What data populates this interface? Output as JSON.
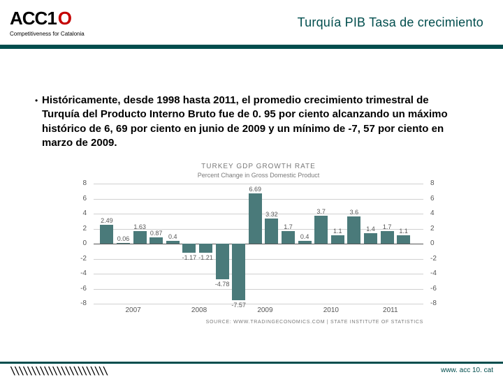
{
  "header": {
    "logo_main": "ACC1",
    "logo_accent": "O",
    "tagline": "Competitiveness for Catalonia",
    "page_title": "Turquía PIB Tasa de crecimiento"
  },
  "bullet": {
    "marker": "•",
    "text": "Históricamente, desde 1998 hasta 2011, el promedio crecimiento trimestral de Turquía  del Producto Interno Bruto fue de 0. 95 por ciento alcanzando un máximo histórico de 6, 69 por ciento en junio de 2009 y un mínimo de -7, 57 por ciento en marzo de 2009."
  },
  "chart": {
    "title": "TURKEY GDP GROWTH RATE",
    "subtitle": "Percent Change in Gross Domestic Product",
    "ylim": [
      -8,
      8
    ],
    "yticks": [
      8,
      6,
      4,
      2,
      0,
      -2,
      -4,
      -6,
      -8
    ],
    "bar_color": "#4a7a7a",
    "grid_color": "#d0d0d0",
    "zero_color": "#555555",
    "bar_width_pct": 4.0,
    "label_fontsize": 9,
    "tick_fontsize": 10,
    "years": [
      {
        "label": "2007",
        "center_pct": 12
      },
      {
        "label": "2008",
        "center_pct": 32
      },
      {
        "label": "2009",
        "center_pct": 52
      },
      {
        "label": "2010",
        "center_pct": 72
      },
      {
        "label": "2011",
        "center_pct": 90
      }
    ],
    "bars": [
      {
        "x_pct": 4,
        "value": 2.49,
        "label": "2.49"
      },
      {
        "x_pct": 9,
        "value": 0.06,
        "label": "0.06"
      },
      {
        "x_pct": 14,
        "value": 1.63,
        "label": "1.63"
      },
      {
        "x_pct": 19,
        "value": 0.87,
        "label": "0.87"
      },
      {
        "x_pct": 24,
        "value": 0.4,
        "label": "0.4"
      },
      {
        "x_pct": 29,
        "value": -1.17,
        "label": "-1.17"
      },
      {
        "x_pct": 34,
        "value": -1.21,
        "label": "-1.21"
      },
      {
        "x_pct": 39,
        "value": -4.78,
        "label": "-4.78"
      },
      {
        "x_pct": 44,
        "value": -7.57,
        "label": "-7.57"
      },
      {
        "x_pct": 49,
        "value": 6.69,
        "label": "6.69"
      },
      {
        "x_pct": 54,
        "value": 3.32,
        "label": "3.32"
      },
      {
        "x_pct": 59,
        "value": 1.7,
        "label": "1.7"
      },
      {
        "x_pct": 64,
        "value": 0.4,
        "label": "0.4"
      },
      {
        "x_pct": 69,
        "value": 3.7,
        "label": "3.7"
      },
      {
        "x_pct": 74,
        "value": 1.1,
        "label": "1.1"
      },
      {
        "x_pct": 79,
        "value": 3.6,
        "label": "3.6"
      },
      {
        "x_pct": 84,
        "value": 1.4,
        "label": "1.4"
      },
      {
        "x_pct": 89,
        "value": 1.7,
        "label": "1.7"
      },
      {
        "x_pct": 94,
        "value": 1.1,
        "label": "1.1"
      }
    ],
    "source": "SOURCE: WWW.TRADINGECONOMICS.COM  |  STATE INSTITUTE OF STATISTICS"
  },
  "footer": {
    "hatch": "\\\\\\\\\\\\\\\\\\\\\\\\\\\\\\\\\\\\\\\\\\\\\\",
    "site": "www. acc 10. cat"
  }
}
